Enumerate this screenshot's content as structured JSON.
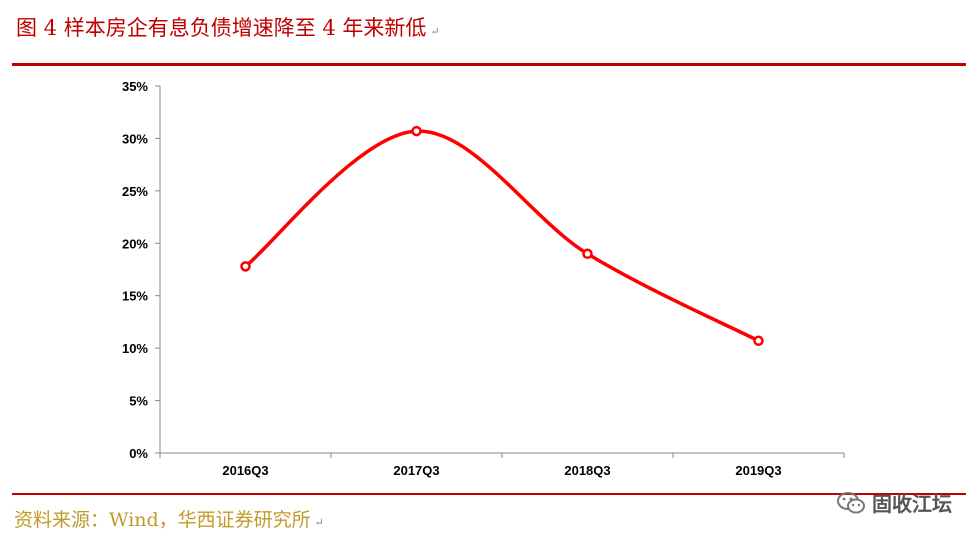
{
  "header": {
    "title": "图 4 样本房企有息负债增速降至 4 年来新低",
    "para_mark": "↵"
  },
  "footer": {
    "source": "资料来源：Wind，华西证券研究所",
    "para_mark": "↵",
    "watermark": "固收江坛"
  },
  "colors": {
    "accent": "#c00000",
    "line": "#ff0000",
    "source_text": "#c29a2b"
  },
  "chart_data": {
    "type": "line",
    "categories": [
      "2016Q3",
      "2017Q3",
      "2018Q3",
      "2019Q3"
    ],
    "series": [
      {
        "values": [
          17.8,
          30.7,
          19.0,
          10.7
        ],
        "color": "#ff0000",
        "smooth": true,
        "markers": "hollow-circle"
      }
    ],
    "yticks": [
      "0%",
      "5%",
      "10%",
      "15%",
      "20%",
      "25%",
      "30%",
      "35%"
    ],
    "ylim": [
      0,
      35
    ],
    "ystep": 5,
    "grid": false,
    "legend": "none",
    "title": "",
    "xlabel": "",
    "ylabel": ""
  }
}
